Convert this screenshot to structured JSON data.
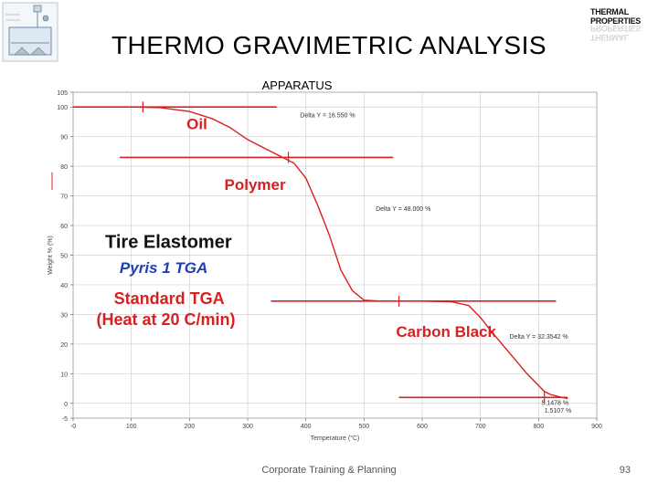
{
  "slide": {
    "title": "THERMO GRAVIMETRIC ANALYSIS",
    "subtitle": "APPARATUS",
    "footer": "Corporate Training & Planning",
    "page_number": "93",
    "logo_text": "THERMAL PROPERTIES"
  },
  "chart_data": {
    "type": "line",
    "xlabel": "Temperature (°C)",
    "ylabel": "Weight % (%)",
    "xlim": [
      0,
      900
    ],
    "ylim": [
      -5,
      105
    ],
    "x_ticks": [
      "-0",
      "100",
      "200",
      "300",
      "400",
      "500",
      "600",
      "700",
      "800",
      "900"
    ],
    "y_ticks": [
      "105",
      "100",
      "90",
      "80",
      "70",
      "60",
      "50",
      "40",
      "30",
      "20",
      "10",
      "0",
      "-5"
    ],
    "grid": true,
    "line_color": "#d92020",
    "series": [
      {
        "x": [
          0,
          100,
          150,
          200,
          240,
          270,
          300,
          330,
          360,
          380,
          400,
          420,
          440,
          460,
          480,
          500,
          530,
          600,
          650,
          680,
          700,
          720,
          750,
          780,
          800,
          810,
          820,
          830,
          840,
          850
        ],
        "y": [
          100,
          100,
          99.8,
          98.5,
          96,
          93,
          89,
          86,
          83,
          81,
          76,
          67,
          57,
          45,
          38,
          34.8,
          34.5,
          34.5,
          34.3,
          33,
          29,
          24,
          17,
          10,
          6,
          4,
          3,
          2.5,
          2,
          1.6
        ]
      }
    ],
    "step_markers": [
      {
        "y": 100,
        "x_from": 0,
        "x_to": 350,
        "tick_x": 120
      },
      {
        "y": 83,
        "x_from": 80,
        "x_to": 550,
        "tick_x": 370
      },
      {
        "y": 34.5,
        "x_from": 340,
        "x_to": 830,
        "tick_x": 560
      },
      {
        "y": 2,
        "x_from": 560,
        "x_to": 850,
        "tick_x": 810
      }
    ],
    "annotations": {
      "small": [
        {
          "text": "Delta Y = 16.550 %",
          "x": 390,
          "y": 96.5
        },
        {
          "text": "Delta Y = 48.000 %",
          "x": 520,
          "y": 65
        },
        {
          "text": "Delta Y = 32.3542 %",
          "x": 750,
          "y": 21.8
        },
        {
          "text": "5.1478 %",
          "x": 805,
          "y": -0.5
        },
        {
          "text": "1.5107 %",
          "x": 810,
          "y": -3.2
        }
      ],
      "labels": [
        {
          "text": "Oil",
          "x": 195,
          "y": 92.5,
          "size": 17
        },
        {
          "text": "Polymer",
          "x": 260,
          "y": 72,
          "size": 17
        },
        {
          "text": "Tire Elastomer",
          "x": 55,
          "y": 52.5,
          "size": 20
        },
        {
          "text": "Pyris 1 TGA",
          "x": 80,
          "y": 44,
          "size": 17,
          "color": "#1f3fb5",
          "italic": true
        },
        {
          "text": "Standard TGA",
          "x": 70,
          "y": 33.5,
          "size": 18
        },
        {
          "text": "(Heat at 20 C/min)",
          "x": 40,
          "y": 26.5,
          "size": 18
        },
        {
          "text": "Carbon Black",
          "x": 555,
          "y": 22.5,
          "size": 17
        }
      ]
    }
  }
}
